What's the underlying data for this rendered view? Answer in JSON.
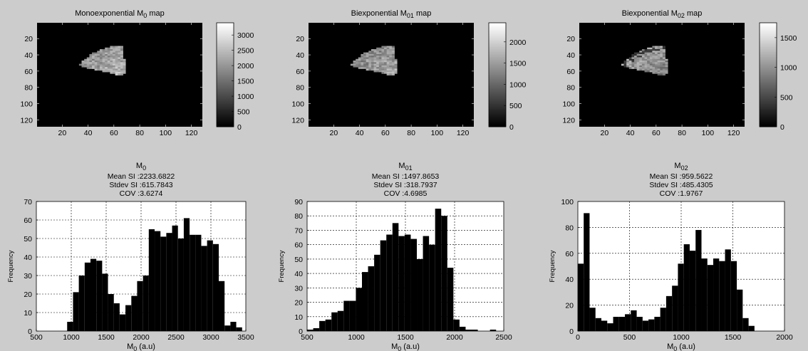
{
  "window": {
    "background": "#cccccc"
  },
  "chart_data": [
    {
      "type": "heatmap",
      "title": "Monoexponential M0 map",
      "title_main": "Monoexponential M",
      "title_sub": "0",
      "title_tail": " map",
      "x_ticks": [
        20,
        40,
        60,
        80,
        100,
        120
      ],
      "y_ticks": [
        20,
        40,
        60,
        80,
        100,
        120
      ],
      "xlim": [
        0.5,
        128.5
      ],
      "ylim": [
        0.5,
        128.5
      ],
      "colorbar": {
        "range": [
          0,
          3400
        ],
        "ticks": [
          0,
          500,
          1000,
          1500,
          2000,
          2500,
          3000
        ],
        "colormap": "gray"
      },
      "region": {
        "center": [
          70,
          67
        ],
        "r_inner": 5,
        "r_outer": 39,
        "angle_start_deg": 95,
        "angle_end_deg": 160,
        "mean_value": 2233.7
      }
    },
    {
      "type": "heatmap",
      "title": "Biexponential M01 map",
      "title_main": "Biexponential M",
      "title_sub": "01",
      "title_tail": " map",
      "x_ticks": [
        20,
        40,
        60,
        80,
        100,
        120
      ],
      "y_ticks": [
        20,
        40,
        60,
        80,
        100,
        120
      ],
      "xlim": [
        0.5,
        128.5
      ],
      "ylim": [
        0.5,
        128.5
      ],
      "colorbar": {
        "range": [
          0,
          2450
        ],
        "ticks": [
          0,
          500,
          1000,
          1500,
          2000
        ],
        "colormap": "gray"
      },
      "region": {
        "center": [
          70,
          67
        ],
        "r_inner": 5,
        "r_outer": 39,
        "angle_start_deg": 95,
        "angle_end_deg": 160,
        "mean_value": 1497.9
      }
    },
    {
      "type": "heatmap",
      "title": "Biexponential M02 map",
      "title_main": "Biexponential M",
      "title_sub": "02",
      "title_tail": " map",
      "x_ticks": [
        20,
        40,
        60,
        80,
        100,
        120
      ],
      "y_ticks": [
        20,
        40,
        60,
        80,
        100,
        120
      ],
      "xlim": [
        0.5,
        128.5
      ],
      "ylim": [
        0.5,
        128.5
      ],
      "colorbar": {
        "range": [
          0,
          1750
        ],
        "ticks": [
          0,
          500,
          1000,
          1500
        ],
        "colormap": "gray"
      },
      "region": {
        "center": [
          70,
          67
        ],
        "r_inner": 5,
        "r_outer": 39,
        "angle_start_deg": 95,
        "angle_end_deg": 160,
        "mean_value": 959.6
      }
    },
    {
      "type": "bar",
      "title_main": "M",
      "title_sub": "0",
      "stats": [
        "Mean SI :2233.6822",
        "Stdev SI :615.7843",
        "COV :3.6274"
      ],
      "xlabel_main": "M",
      "xlabel_sub": "0",
      "xlabel_tail": " (a.u)",
      "ylabel": "Frequency",
      "xlim": [
        500,
        3500
      ],
      "ylim": [
        0,
        70
      ],
      "x_ticks": [
        500,
        1000,
        1500,
        2000,
        2500,
        3000,
        3500
      ],
      "y_ticks": [
        0,
        10,
        20,
        30,
        40,
        50,
        60,
        70
      ],
      "grid": true,
      "bin_width": 83.5,
      "bins": [
        {
          "x": 983,
          "y": 5
        },
        {
          "x": 1067,
          "y": 21
        },
        {
          "x": 1150,
          "y": 30
        },
        {
          "x": 1234,
          "y": 37
        },
        {
          "x": 1317,
          "y": 39
        },
        {
          "x": 1401,
          "y": 38
        },
        {
          "x": 1484,
          "y": 31
        },
        {
          "x": 1568,
          "y": 20
        },
        {
          "x": 1651,
          "y": 15
        },
        {
          "x": 1735,
          "y": 9
        },
        {
          "x": 1818,
          "y": 14
        },
        {
          "x": 1902,
          "y": 19
        },
        {
          "x": 1985,
          "y": 27
        },
        {
          "x": 2069,
          "y": 30
        },
        {
          "x": 2152,
          "y": 55
        },
        {
          "x": 2236,
          "y": 54
        },
        {
          "x": 2319,
          "y": 51
        },
        {
          "x": 2403,
          "y": 53
        },
        {
          "x": 2486,
          "y": 57
        },
        {
          "x": 2570,
          "y": 50
        },
        {
          "x": 2653,
          "y": 61
        },
        {
          "x": 2737,
          "y": 52
        },
        {
          "x": 2820,
          "y": 52
        },
        {
          "x": 2904,
          "y": 46
        },
        {
          "x": 2987,
          "y": 49
        },
        {
          "x": 3071,
          "y": 47
        },
        {
          "x": 3154,
          "y": 27
        },
        {
          "x": 3238,
          "y": 3
        },
        {
          "x": 3321,
          "y": 5
        },
        {
          "x": 3405,
          "y": 2
        }
      ]
    },
    {
      "type": "bar",
      "title_main": "M",
      "title_sub": "01",
      "stats": [
        "Mean SI :1497.8653",
        "Stdev SI :318.7937",
        "COV :4.6985"
      ],
      "xlabel_main": "M",
      "xlabel_sub": "0",
      "xlabel_tail": " (a.u)",
      "ylabel": "Frequency",
      "xlim": [
        500,
        2500
      ],
      "ylim": [
        0,
        90
      ],
      "x_ticks": [
        500,
        1000,
        1500,
        2000,
        2500
      ],
      "y_ticks": [
        0,
        10,
        20,
        30,
        40,
        50,
        60,
        70,
        80,
        90
      ],
      "grid": true,
      "bin_width": 62,
      "bins": [
        {
          "x": 531,
          "y": 1
        },
        {
          "x": 593,
          "y": 2
        },
        {
          "x": 655,
          "y": 7
        },
        {
          "x": 717,
          "y": 8
        },
        {
          "x": 779,
          "y": 13
        },
        {
          "x": 841,
          "y": 14
        },
        {
          "x": 903,
          "y": 21
        },
        {
          "x": 965,
          "y": 21
        },
        {
          "x": 1027,
          "y": 30
        },
        {
          "x": 1089,
          "y": 41
        },
        {
          "x": 1151,
          "y": 45
        },
        {
          "x": 1213,
          "y": 53
        },
        {
          "x": 1275,
          "y": 63
        },
        {
          "x": 1337,
          "y": 67
        },
        {
          "x": 1399,
          "y": 75
        },
        {
          "x": 1461,
          "y": 66
        },
        {
          "x": 1523,
          "y": 67
        },
        {
          "x": 1585,
          "y": 64
        },
        {
          "x": 1647,
          "y": 50
        },
        {
          "x": 1709,
          "y": 66
        },
        {
          "x": 1771,
          "y": 60
        },
        {
          "x": 1833,
          "y": 85
        },
        {
          "x": 1895,
          "y": 80
        },
        {
          "x": 1957,
          "y": 44
        },
        {
          "x": 2019,
          "y": 8
        },
        {
          "x": 2081,
          "y": 3
        },
        {
          "x": 2143,
          "y": 1
        },
        {
          "x": 2205,
          "y": 1
        },
        {
          "x": 2391,
          "y": 1
        }
      ]
    },
    {
      "type": "bar",
      "title_main": "M",
      "title_sub": "02",
      "stats": [
        "Mean SI :959.5622",
        "Stdev SI :485.4305",
        "COV :1.9767"
      ],
      "xlabel_main": "M",
      "xlabel_sub": "0",
      "xlabel_tail": " (a.u)",
      "ylabel": "Frequency",
      "xlim": [
        0,
        2000
      ],
      "ylim": [
        0,
        100
      ],
      "x_ticks": [
        0,
        500,
        1000,
        1500,
        2000
      ],
      "y_ticks": [
        0,
        20,
        40,
        60,
        80,
        100
      ],
      "grid": true,
      "bin_width": 57,
      "bins": [
        {
          "x": 28,
          "y": 52
        },
        {
          "x": 85,
          "y": 91
        },
        {
          "x": 142,
          "y": 18
        },
        {
          "x": 199,
          "y": 10
        },
        {
          "x": 256,
          "y": 8
        },
        {
          "x": 313,
          "y": 6
        },
        {
          "x": 370,
          "y": 11
        },
        {
          "x": 427,
          "y": 11
        },
        {
          "x": 484,
          "y": 13
        },
        {
          "x": 541,
          "y": 16
        },
        {
          "x": 598,
          "y": 11
        },
        {
          "x": 655,
          "y": 8
        },
        {
          "x": 712,
          "y": 9
        },
        {
          "x": 769,
          "y": 11
        },
        {
          "x": 826,
          "y": 18
        },
        {
          "x": 883,
          "y": 27
        },
        {
          "x": 940,
          "y": 35
        },
        {
          "x": 997,
          "y": 52
        },
        {
          "x": 1054,
          "y": 67
        },
        {
          "x": 1111,
          "y": 62
        },
        {
          "x": 1168,
          "y": 78
        },
        {
          "x": 1225,
          "y": 56
        },
        {
          "x": 1282,
          "y": 51
        },
        {
          "x": 1339,
          "y": 56
        },
        {
          "x": 1396,
          "y": 54
        },
        {
          "x": 1453,
          "y": 63
        },
        {
          "x": 1510,
          "y": 54
        },
        {
          "x": 1567,
          "y": 32
        },
        {
          "x": 1624,
          "y": 10
        },
        {
          "x": 1681,
          "y": 4
        }
      ]
    }
  ]
}
